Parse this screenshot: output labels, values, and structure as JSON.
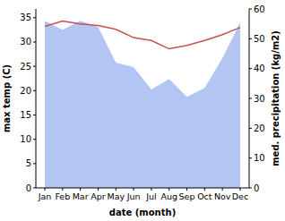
{
  "chart_data": {
    "type": "line",
    "xlabel": "date (month)",
    "ylabel": "max temp (C)",
    "y2label": "med. precipitation (kg/m2)",
    "categories": [
      "Jan",
      "Feb",
      "Mar",
      "Apr",
      "May",
      "Jun",
      "Jul",
      "Aug",
      "Sep",
      "Oct",
      "Nov",
      "Dec"
    ],
    "series": [
      {
        "type": "area",
        "axis": "y2",
        "color": "#b3c5f3",
        "values": [
          56,
          53,
          56,
          54,
          42,
          40.5,
          33,
          36.5,
          30.5,
          33.5,
          43.5,
          55.5
        ]
      },
      {
        "type": "line",
        "color": "#c9504d",
        "values": [
          33.2,
          34.3,
          33.7,
          33.4,
          32.6,
          30.9,
          30.3,
          28.6,
          29.3,
          30.3,
          31.5,
          33.0
        ]
      }
    ],
    "ylim": [
      0,
      36.8
    ],
    "yticks": [
      0,
      5,
      10,
      15,
      20,
      25,
      30,
      35
    ],
    "y2lim": [
      0,
      60
    ],
    "y2ticks": [
      0,
      10,
      20,
      30,
      40,
      50,
      60
    ],
    "grid": false
  }
}
